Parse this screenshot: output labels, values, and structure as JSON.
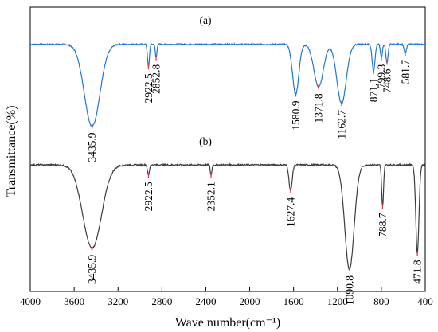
{
  "chart_data": {
    "type": "line",
    "xlabel": "Wave number(cm⁻¹)",
    "ylabel": "Transmittance(%)",
    "x_range": [
      4000,
      400
    ],
    "x_ticks": [
      4000,
      3600,
      3200,
      2800,
      2400,
      2000,
      1600,
      1200,
      800,
      400
    ],
    "y_ticks_shown": false,
    "grid": false,
    "colors": {
      "a": "#1f77d8",
      "b": "#3c3c3c",
      "marker": "#e8373b"
    },
    "series": [
      {
        "name": "(a)",
        "baseline": 0.88,
        "peaks": [
          {
            "x": 3435.9,
            "label": "3435.9",
            "depth": 0.9,
            "width": 100
          },
          {
            "x": 2922.5,
            "label": "2922.5",
            "depth": 0.25,
            "width": 12
          },
          {
            "x": 2852.8,
            "label": "2852.8",
            "depth": 0.15,
            "width": 10
          },
          {
            "x": 1580.9,
            "label": "1580.9",
            "depth": 0.55,
            "width": 40
          },
          {
            "x": 1371.8,
            "label": "1371.8",
            "depth": 0.47,
            "width": 60
          },
          {
            "x": 1162.7,
            "label": "1162.7",
            "depth": 0.65,
            "width": 60
          },
          {
            "x": 871.1,
            "label": "871.1",
            "depth": 0.3,
            "width": 18
          },
          {
            "x": 799.3,
            "label": "799.3",
            "depth": 0.15,
            "width": 12
          },
          {
            "x": 748.6,
            "label": "748.6",
            "depth": 0.2,
            "width": 14
          },
          {
            "x": 581.7,
            "label": "581.7",
            "depth": 0.1,
            "width": 15
          }
        ]
      },
      {
        "name": "(b)",
        "baseline": 0.85,
        "peaks": [
          {
            "x": 3435.9,
            "label": "3435.9",
            "depth": 0.8,
            "width": 120
          },
          {
            "x": 2922.5,
            "label": "2922.5",
            "depth": 0.1,
            "width": 12
          },
          {
            "x": 2352.1,
            "label": "2352.1",
            "depth": 0.1,
            "width": 10
          },
          {
            "x": 1627.4,
            "label": "1627.4",
            "depth": 0.25,
            "width": 20
          },
          {
            "x": 1090.8,
            "label": "1090.8",
            "depth": 1.0,
            "width": 60
          },
          {
            "x": 788.7,
            "label": "788.7",
            "depth": 0.4,
            "width": 12
          },
          {
            "x": 471.8,
            "label": "471.8",
            "depth": 0.85,
            "width": 20
          }
        ]
      }
    ]
  }
}
